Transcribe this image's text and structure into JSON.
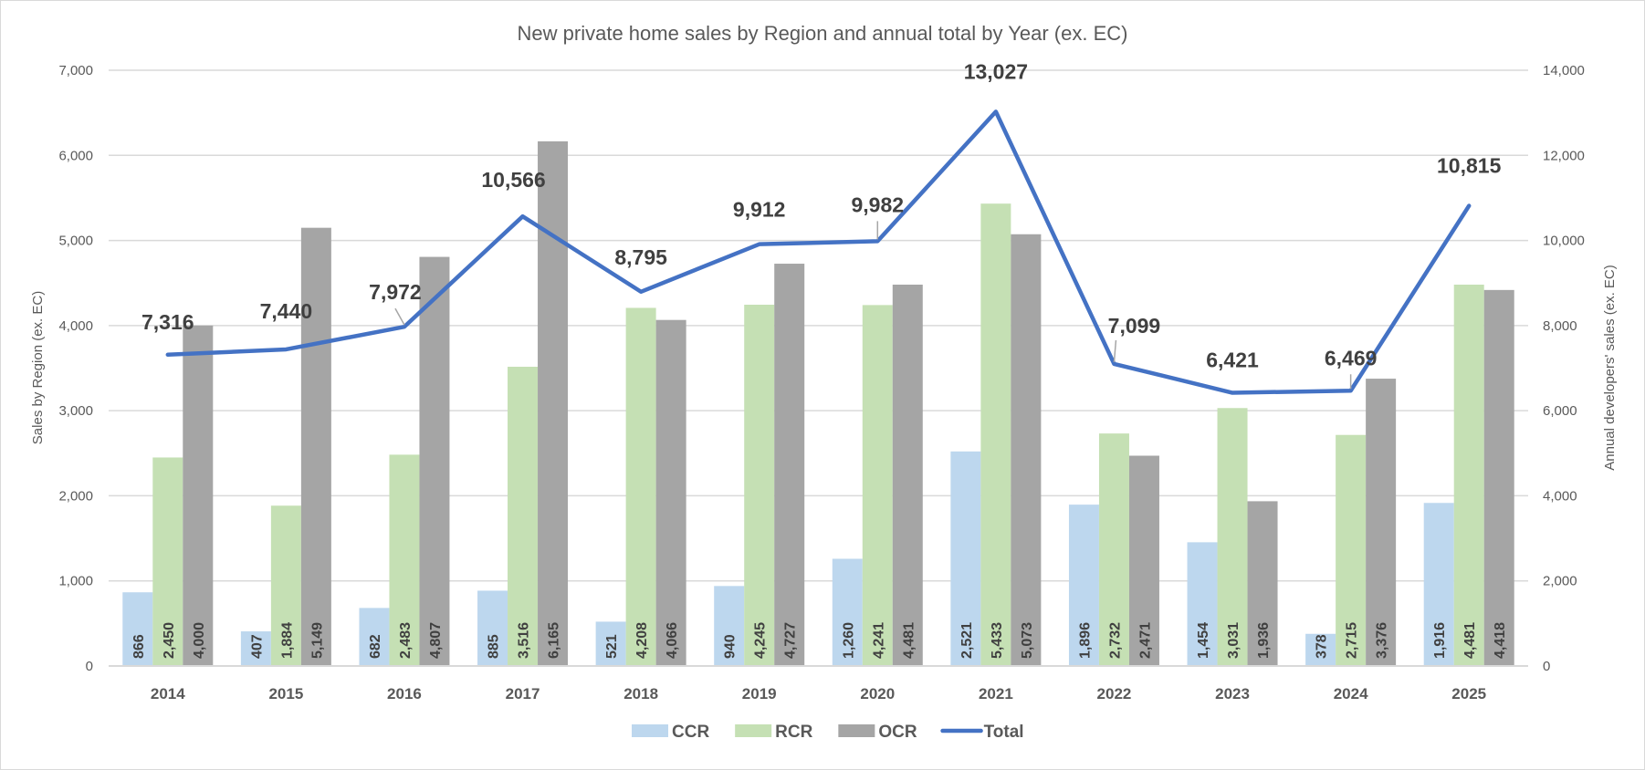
{
  "chart_data": {
    "type": "bar",
    "title": "New private home sales by Region and annual total by Year (ex. EC)",
    "ylabel": "Sales by Region (ex. EC)",
    "y2label": "Annual developers' sales (ex. EC)",
    "xlabel": "",
    "ylim": [
      0,
      7000
    ],
    "y2lim": [
      0,
      14000
    ],
    "yticks": [
      "0",
      "1,000",
      "2,000",
      "3,000",
      "4,000",
      "5,000",
      "6,000",
      "7,000"
    ],
    "y2ticks": [
      "0",
      "2,000",
      "4,000",
      "6,000",
      "8,000",
      "10,000",
      "12,000",
      "14,000"
    ],
    "yticks_values": [
      0,
      1000,
      2000,
      3000,
      4000,
      5000,
      6000,
      7000
    ],
    "y2ticks_values": [
      0,
      2000,
      4000,
      6000,
      8000,
      10000,
      12000,
      14000
    ],
    "grid": true,
    "legend_position": "bottom",
    "categories": [
      "2014",
      "2015",
      "2016",
      "2017",
      "2018",
      "2019",
      "2020",
      "2021",
      "2022",
      "2023",
      "2024",
      "2025"
    ],
    "series": [
      {
        "name": "CCR",
        "type": "bar",
        "axis": "left",
        "color": "#bdd7ee",
        "values": [
          866,
          407,
          682,
          885,
          521,
          940,
          1260,
          2521,
          1896,
          1454,
          378,
          1916
        ],
        "labels": [
          "866",
          "407",
          "682",
          "885",
          "521",
          "940",
          "1,260",
          "2,521",
          "1,896",
          "1,454",
          "378",
          "1,916"
        ]
      },
      {
        "name": "RCR",
        "type": "bar",
        "axis": "left",
        "color": "#c5e0b4",
        "values": [
          2450,
          1884,
          2483,
          3516,
          4208,
          4245,
          4241,
          5433,
          2732,
          3031,
          2715,
          4481
        ],
        "labels": [
          "2,450",
          "1,884",
          "2,483",
          "3,516",
          "4,208",
          "4,245",
          "4,241",
          "5,433",
          "2,732",
          "3,031",
          "2,715",
          "4,481"
        ]
      },
      {
        "name": "OCR",
        "type": "bar",
        "axis": "left",
        "color": "#a5a5a5",
        "values": [
          4000,
          5149,
          4807,
          6165,
          4066,
          4727,
          4481,
          5073,
          2471,
          1936,
          3376,
          4418
        ],
        "labels": [
          "4,000",
          "5,149",
          "4,807",
          "6,165",
          "4,066",
          "4,727",
          "4,481",
          "5,073",
          "2,471",
          "1,936",
          "3,376",
          "4,418"
        ]
      },
      {
        "name": "Total",
        "type": "line",
        "axis": "right",
        "color": "#4472c4",
        "values": [
          7316,
          7440,
          7972,
          10566,
          8795,
          9912,
          9982,
          13027,
          7099,
          6421,
          6469,
          10815
        ],
        "labels": [
          "7,316",
          "7,440",
          "7,972",
          "10,566",
          "8,795",
          "9,912",
          "9,982",
          "13,027",
          "7,099",
          "6,421",
          "6,469",
          "10,815"
        ]
      }
    ],
    "legend": [
      "CCR",
      "RCR",
      "OCR",
      "Total"
    ]
  }
}
